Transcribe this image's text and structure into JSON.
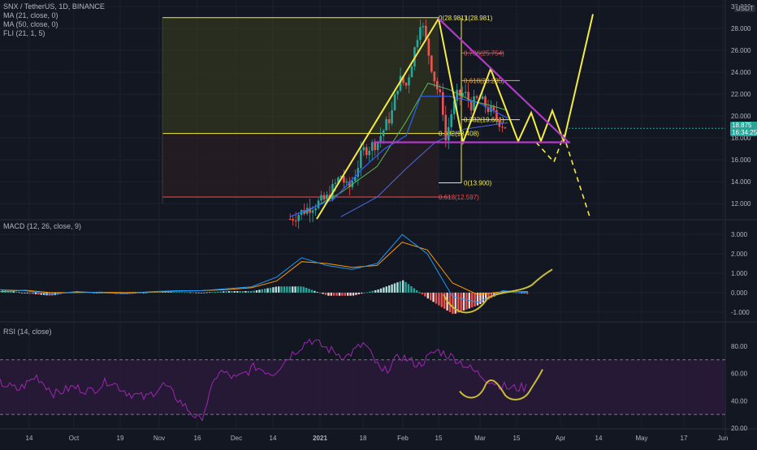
{
  "header": {
    "symbol_line": "SNX / TetherUS, 1D, BINANCE",
    "ma21": "MA (21, close, 0)",
    "ma50": "MA (50, close, 0)",
    "fli": "FLI (21, 1, 5)",
    "currency": "USDT",
    "macd_title": "MACD (12, 26, close, 9)",
    "rsi_title": "RSI (14, close)"
  },
  "price_tag": {
    "price": "18.875",
    "countdown": "16:34:25"
  },
  "colors": {
    "bg": "#131722",
    "up": "#26a69a",
    "down": "#ef5350",
    "drawing_yellow": "#f5ec43",
    "drawing_purple": "#b03bc4",
    "ma21": "#5cb85c",
    "ma50": "#2962ff",
    "rsi": "#9c27b0"
  },
  "chart_data": [
    {
      "type": "candlestick",
      "title": "SNX / TetherUS, 1D, BINANCE",
      "y_ticks": [
        "30.000",
        "28.000",
        "26.000",
        "24.000",
        "22.000",
        "20.000",
        "18.000",
        "16.000",
        "14.000",
        "12.000"
      ],
      "x_ticks": [
        "14",
        "Oct",
        "19",
        "Nov",
        "16",
        "Dec",
        "14",
        "2021",
        "18",
        "Feb",
        "15",
        "Mar",
        "15",
        "Apr",
        "14",
        "May",
        "17",
        "Jun"
      ],
      "ylim": [
        10.6,
        30.3
      ],
      "last_price": 18.875,
      "close_path": [
        [
          0.4,
          10.6
        ],
        [
          0.43,
          11.8
        ],
        [
          0.45,
          12.4
        ],
        [
          0.47,
          14.6
        ],
        [
          0.48,
          13.2
        ],
        [
          0.49,
          14.8
        ],
        [
          0.5,
          16.8
        ],
        [
          0.52,
          17.6
        ],
        [
          0.54,
          20.2
        ],
        [
          0.55,
          23.4
        ],
        [
          0.56,
          22.8
        ],
        [
          0.57,
          25.6
        ],
        [
          0.58,
          28.9
        ],
        [
          0.59,
          26.0
        ],
        [
          0.6,
          23.1
        ],
        [
          0.61,
          21.0
        ],
        [
          0.615,
          17.4
        ],
        [
          0.62,
          19.8
        ],
        [
          0.63,
          21.8
        ],
        [
          0.64,
          22.1
        ],
        [
          0.65,
          21.0
        ],
        [
          0.66,
          21.6
        ],
        [
          0.67,
          20.9
        ],
        [
          0.68,
          20.2
        ],
        [
          0.69,
          19.4
        ],
        [
          0.7,
          18.9
        ]
      ],
      "fib_levels": [
        {
          "label": "1(28.981)",
          "ratio": 1,
          "value": 28.981
        },
        {
          "label": "0(28.981)",
          "ratio": 0,
          "value": 28.981
        },
        {
          "label": "0.786(25.754)",
          "ratio": 0.786,
          "value": 25.754
        },
        {
          "label": "0.618(23.235)",
          "ratio": 0.618,
          "value": 23.235
        },
        {
          "label": "0.382(19.661)",
          "ratio": 0.382,
          "value": 19.661
        },
        {
          "label": "0.382(18.408)",
          "ratio": 0.382,
          "value": 18.408
        },
        {
          "label": "0(13.900)",
          "ratio": 0,
          "value": 13.9
        },
        {
          "label": "0.618(12.597)",
          "ratio": 0.618,
          "value": 12.597
        }
      ]
    },
    {
      "type": "line",
      "title": "MACD (12, 26, close, 9)",
      "y_ticks": [
        "3.000",
        "2.000",
        "1.000",
        "0.000",
        "-1.000"
      ],
      "ylim": [
        -1.3,
        3.3
      ],
      "series": [
        {
          "name": "MACD",
          "color": "#2196f3",
          "values": [
            0.15,
            0.1,
            -0.1,
            0.05,
            0.0,
            -0.05,
            0.05,
            0.1,
            0.1,
            0.2,
            0.3,
            0.8,
            1.8,
            1.4,
            1.2,
            1.5,
            3.0,
            2.0,
            -0.2,
            -0.5,
            0.1,
            0.0
          ]
        },
        {
          "name": "Signal",
          "color": "#ff9800",
          "values": [
            0.05,
            0.12,
            0.0,
            0.0,
            0.02,
            0.0,
            0.03,
            0.08,
            0.1,
            0.15,
            0.25,
            0.6,
            1.6,
            1.5,
            1.3,
            1.4,
            2.6,
            2.2,
            0.5,
            -0.1,
            0.05,
            0.05
          ]
        }
      ]
    },
    {
      "type": "line",
      "title": "RSI (14, close)",
      "y_ticks": [
        "80.00",
        "60.00",
        "40.00",
        "20.00"
      ],
      "ylim": [
        20,
        90
      ],
      "bands": [
        30,
        70
      ],
      "series": [
        {
          "name": "RSI",
          "color": "#9c27b0",
          "values": [
            53,
            48,
            58,
            45,
            50,
            47,
            55,
            46,
            42,
            52,
            38,
            25,
            62,
            56,
            65,
            60,
            74,
            85,
            78,
            72,
            82,
            60,
            73,
            66,
            77,
            71,
            62,
            54,
            49,
            50
          ]
        }
      ]
    }
  ]
}
